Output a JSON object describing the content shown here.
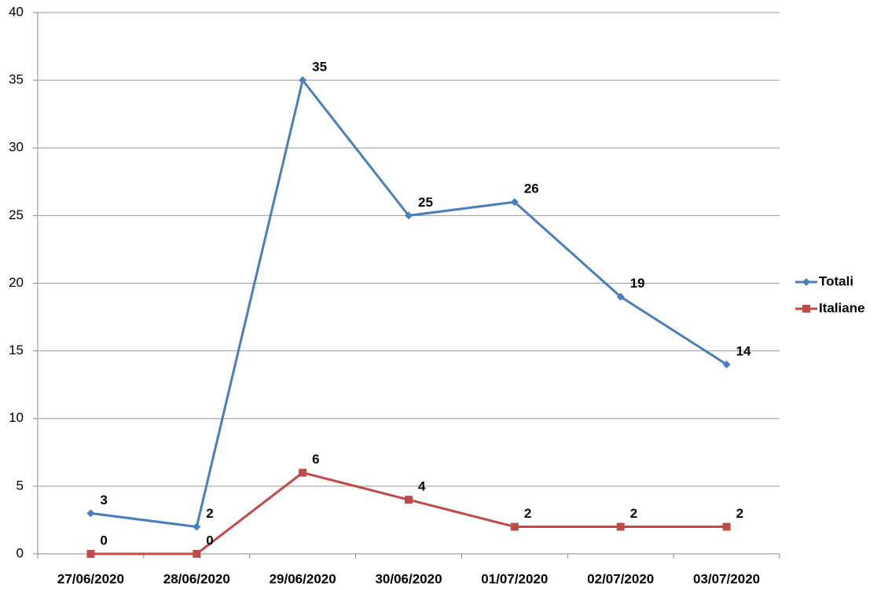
{
  "chart_data": {
    "type": "line",
    "categories": [
      "27/06/2020",
      "28/06/2020",
      "29/06/2020",
      "30/06/2020",
      "01/07/2020",
      "02/07/2020",
      "03/07/2020"
    ],
    "series": [
      {
        "name": "Totali",
        "color": "#4a7ebb",
        "marker": "diamond",
        "values": [
          3,
          2,
          35,
          25,
          26,
          19,
          14
        ]
      },
      {
        "name": "Italiane",
        "color": "#be4b48",
        "marker": "square",
        "values": [
          0,
          0,
          6,
          4,
          2,
          2,
          2
        ]
      }
    ],
    "ylim": [
      0,
      40
    ],
    "yticks": [
      0,
      5,
      10,
      15,
      20,
      25,
      30,
      35,
      40
    ],
    "grid": true,
    "legend": "right"
  }
}
